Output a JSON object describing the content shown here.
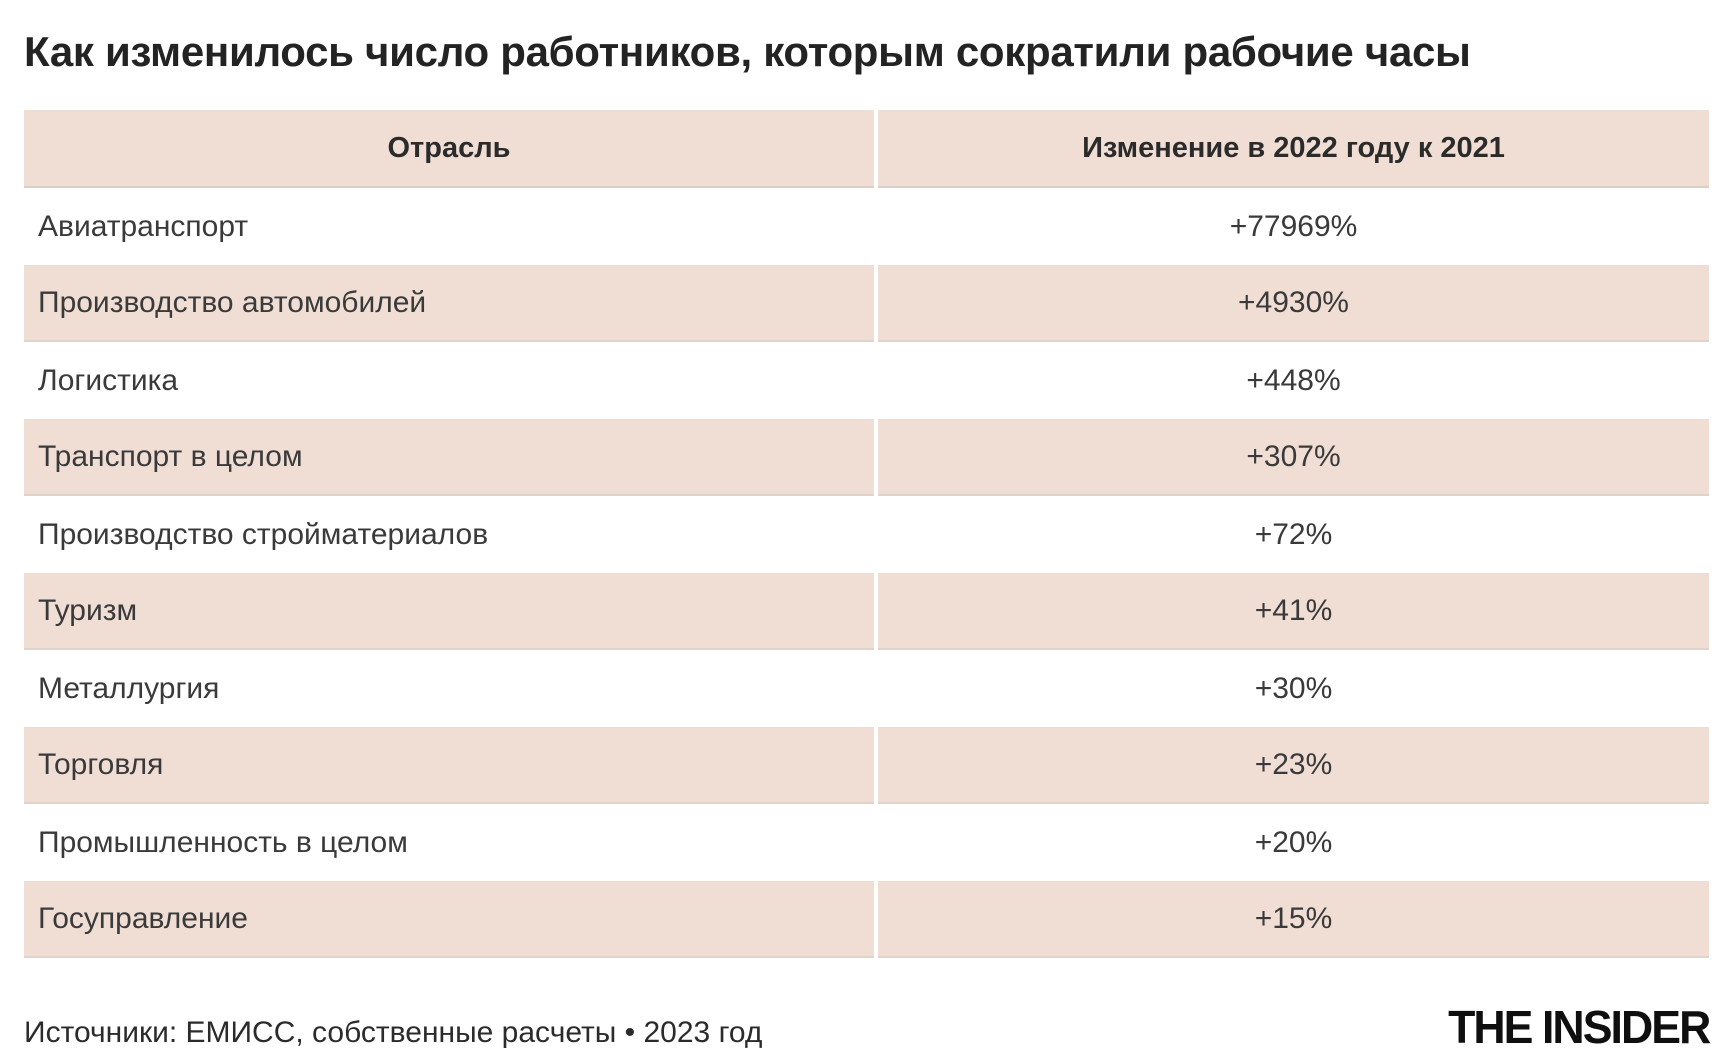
{
  "title": "Как изменилось число работников, которым сократили рабочие часы",
  "table": {
    "header": {
      "industry": "Отрасль",
      "change": "Изменение в 2022 году к 2021"
    },
    "rows": [
      {
        "industry": "Авиатранспорт",
        "change": "+77969%"
      },
      {
        "industry": "Производство автомобилей",
        "change": "+4930%"
      },
      {
        "industry": "Логистика",
        "change": "+448%"
      },
      {
        "industry": "Транспорт в целом",
        "change": "+307%"
      },
      {
        "industry": "Производство стройматериалов",
        "change": "+72%"
      },
      {
        "industry": "Туризм",
        "change": "+41%"
      },
      {
        "industry": "Металлургия",
        "change": "+30%"
      },
      {
        "industry": "Торговля",
        "change": "+23%"
      },
      {
        "industry": "Промышленность в целом",
        "change": "+20%"
      },
      {
        "industry": "Госуправление",
        "change": "+15%"
      }
    ]
  },
  "footer": {
    "source": "Источники: ЕМИСС, собственные расчеты • 2023 год",
    "logo": "THE INSIDER"
  },
  "colors": {
    "row_highlight": "#f0ded5",
    "row_plain": "#ffffff",
    "title_text": "#232323",
    "cell_text": "#3a3a3a",
    "logo_text": "#0f0f0f"
  },
  "chart_data": {
    "type": "table",
    "title": "Как изменилось число работников, которым сократили рабочие часы",
    "columns": [
      "Отрасль",
      "Изменение в 2022 году к 2021"
    ],
    "categories": [
      "Авиатранспорт",
      "Производство автомобилей",
      "Логистика",
      "Транспорт в целом",
      "Производство стройматериалов",
      "Туризм",
      "Металлургия",
      "Торговля",
      "Промышленность в целом",
      "Госуправление"
    ],
    "values_percent": [
      77969,
      4930,
      448,
      307,
      72,
      41,
      30,
      23,
      20,
      15
    ],
    "value_labels": [
      "+77969%",
      "+4930%",
      "+448%",
      "+307%",
      "+72%",
      "+41%",
      "+30%",
      "+23%",
      "+20%",
      "+15%"
    ],
    "annotations": [
      "Источники: ЕМИСС, собственные расчеты • 2023 год"
    ]
  }
}
